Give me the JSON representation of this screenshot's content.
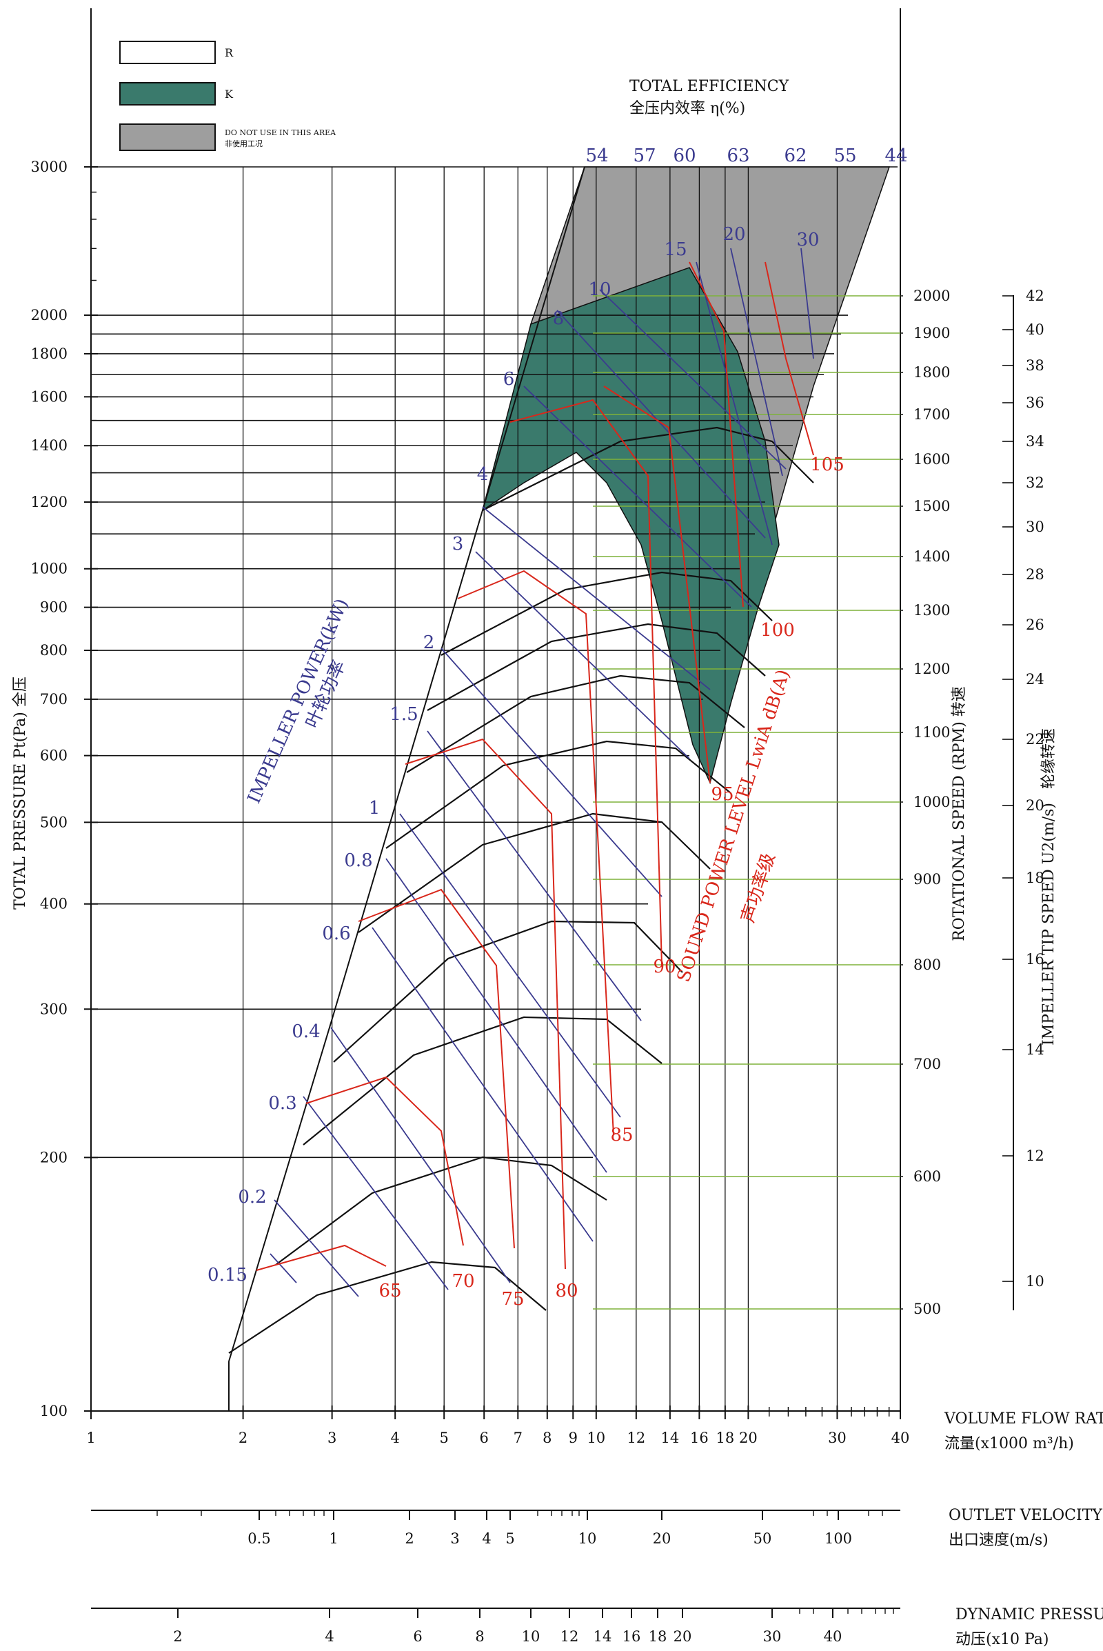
{
  "chart_data": {
    "type": "line",
    "title": "TOTAL EFFICIENCY",
    "title_cn": "全压内效率 η(%)",
    "legend": [
      {
        "key": "R",
        "color": "#ffffff"
      },
      {
        "key": "K",
        "color": "#3a7a6c"
      },
      {
        "key": "DO NOT USE IN THIS AREA",
        "sub": "非使用工况",
        "color": "#9e9e9e"
      }
    ],
    "y_axis": {
      "label": "TOTAL PRESSURE Pt(Pa)  全压",
      "scale": "log",
      "range": [
        100,
        3000
      ],
      "ticks": [
        100,
        200,
        300,
        400,
        500,
        600,
        700,
        800,
        900,
        1000,
        1200,
        1400,
        1600,
        1800,
        2000,
        3000
      ]
    },
    "x_axis": {
      "label": "VOLUME FLOW RATE",
      "label_cn": "流量(x1000 m³/h)",
      "scale": "log",
      "range": [
        1,
        40
      ],
      "ticks": [
        1,
        2,
        3,
        4,
        5,
        6,
        7,
        8,
        9,
        10,
        12,
        14,
        16,
        18,
        20,
        30,
        40
      ]
    },
    "outlet_velocity_axis": {
      "label": "OUTLET VELOCITY",
      "label_cn": "出口速度(m/s)",
      "ticks": [
        "0.5",
        "1",
        "2",
        "3",
        "4",
        "5",
        "10",
        "20",
        "50",
        "100"
      ]
    },
    "dynamic_pressure_axis": {
      "label": "DYNAMIC PRESSURE",
      "label_cn": "动压(x10 Pa)",
      "ticks": [
        "2",
        "4",
        "6",
        "8",
        "10",
        "12",
        "14",
        "16",
        "18",
        "20",
        "30",
        "40"
      ]
    },
    "rotational_speed": {
      "label": "ROTATIONAL SPEED (RPM) 转速",
      "ticks": [
        "2000",
        "1900",
        "1800",
        "1700",
        "1600",
        "1500",
        "1400",
        "1300",
        "1200",
        "1100",
        "1000",
        "900",
        "800",
        "700",
        "600",
        "500"
      ]
    },
    "tip_speed": {
      "label": "IMPELLER TIP SPEED U2(m/s)",
      "label_cn": "轮缘转速",
      "ticks": [
        "42",
        "40",
        "38",
        "36",
        "34",
        "32",
        "30",
        "28",
        "26",
        "24",
        "22",
        "20",
        "18",
        "16",
        "14",
        "12",
        "10"
      ]
    },
    "efficiency_labels": [
      "54",
      "57",
      "60",
      "63",
      "62",
      "55",
      "44"
    ],
    "impeller_power": {
      "label": "IMPELLER POWER(kW)",
      "label_cn": "叶轮功率",
      "values": [
        "0.15",
        "0.2",
        "0.3",
        "0.4",
        "0.6",
        "0.8",
        "1",
        "1.5",
        "2",
        "3",
        "4",
        "6",
        "8",
        "10",
        "15",
        "20",
        "30"
      ]
    },
    "sound_power": {
      "label": "SOUND POWER LEVEL LwiA dB(A)",
      "label_cn": "声功率级",
      "values": [
        "65",
        "70",
        "75",
        "80",
        "85",
        "90",
        "95",
        "100",
        "105"
      ]
    }
  }
}
